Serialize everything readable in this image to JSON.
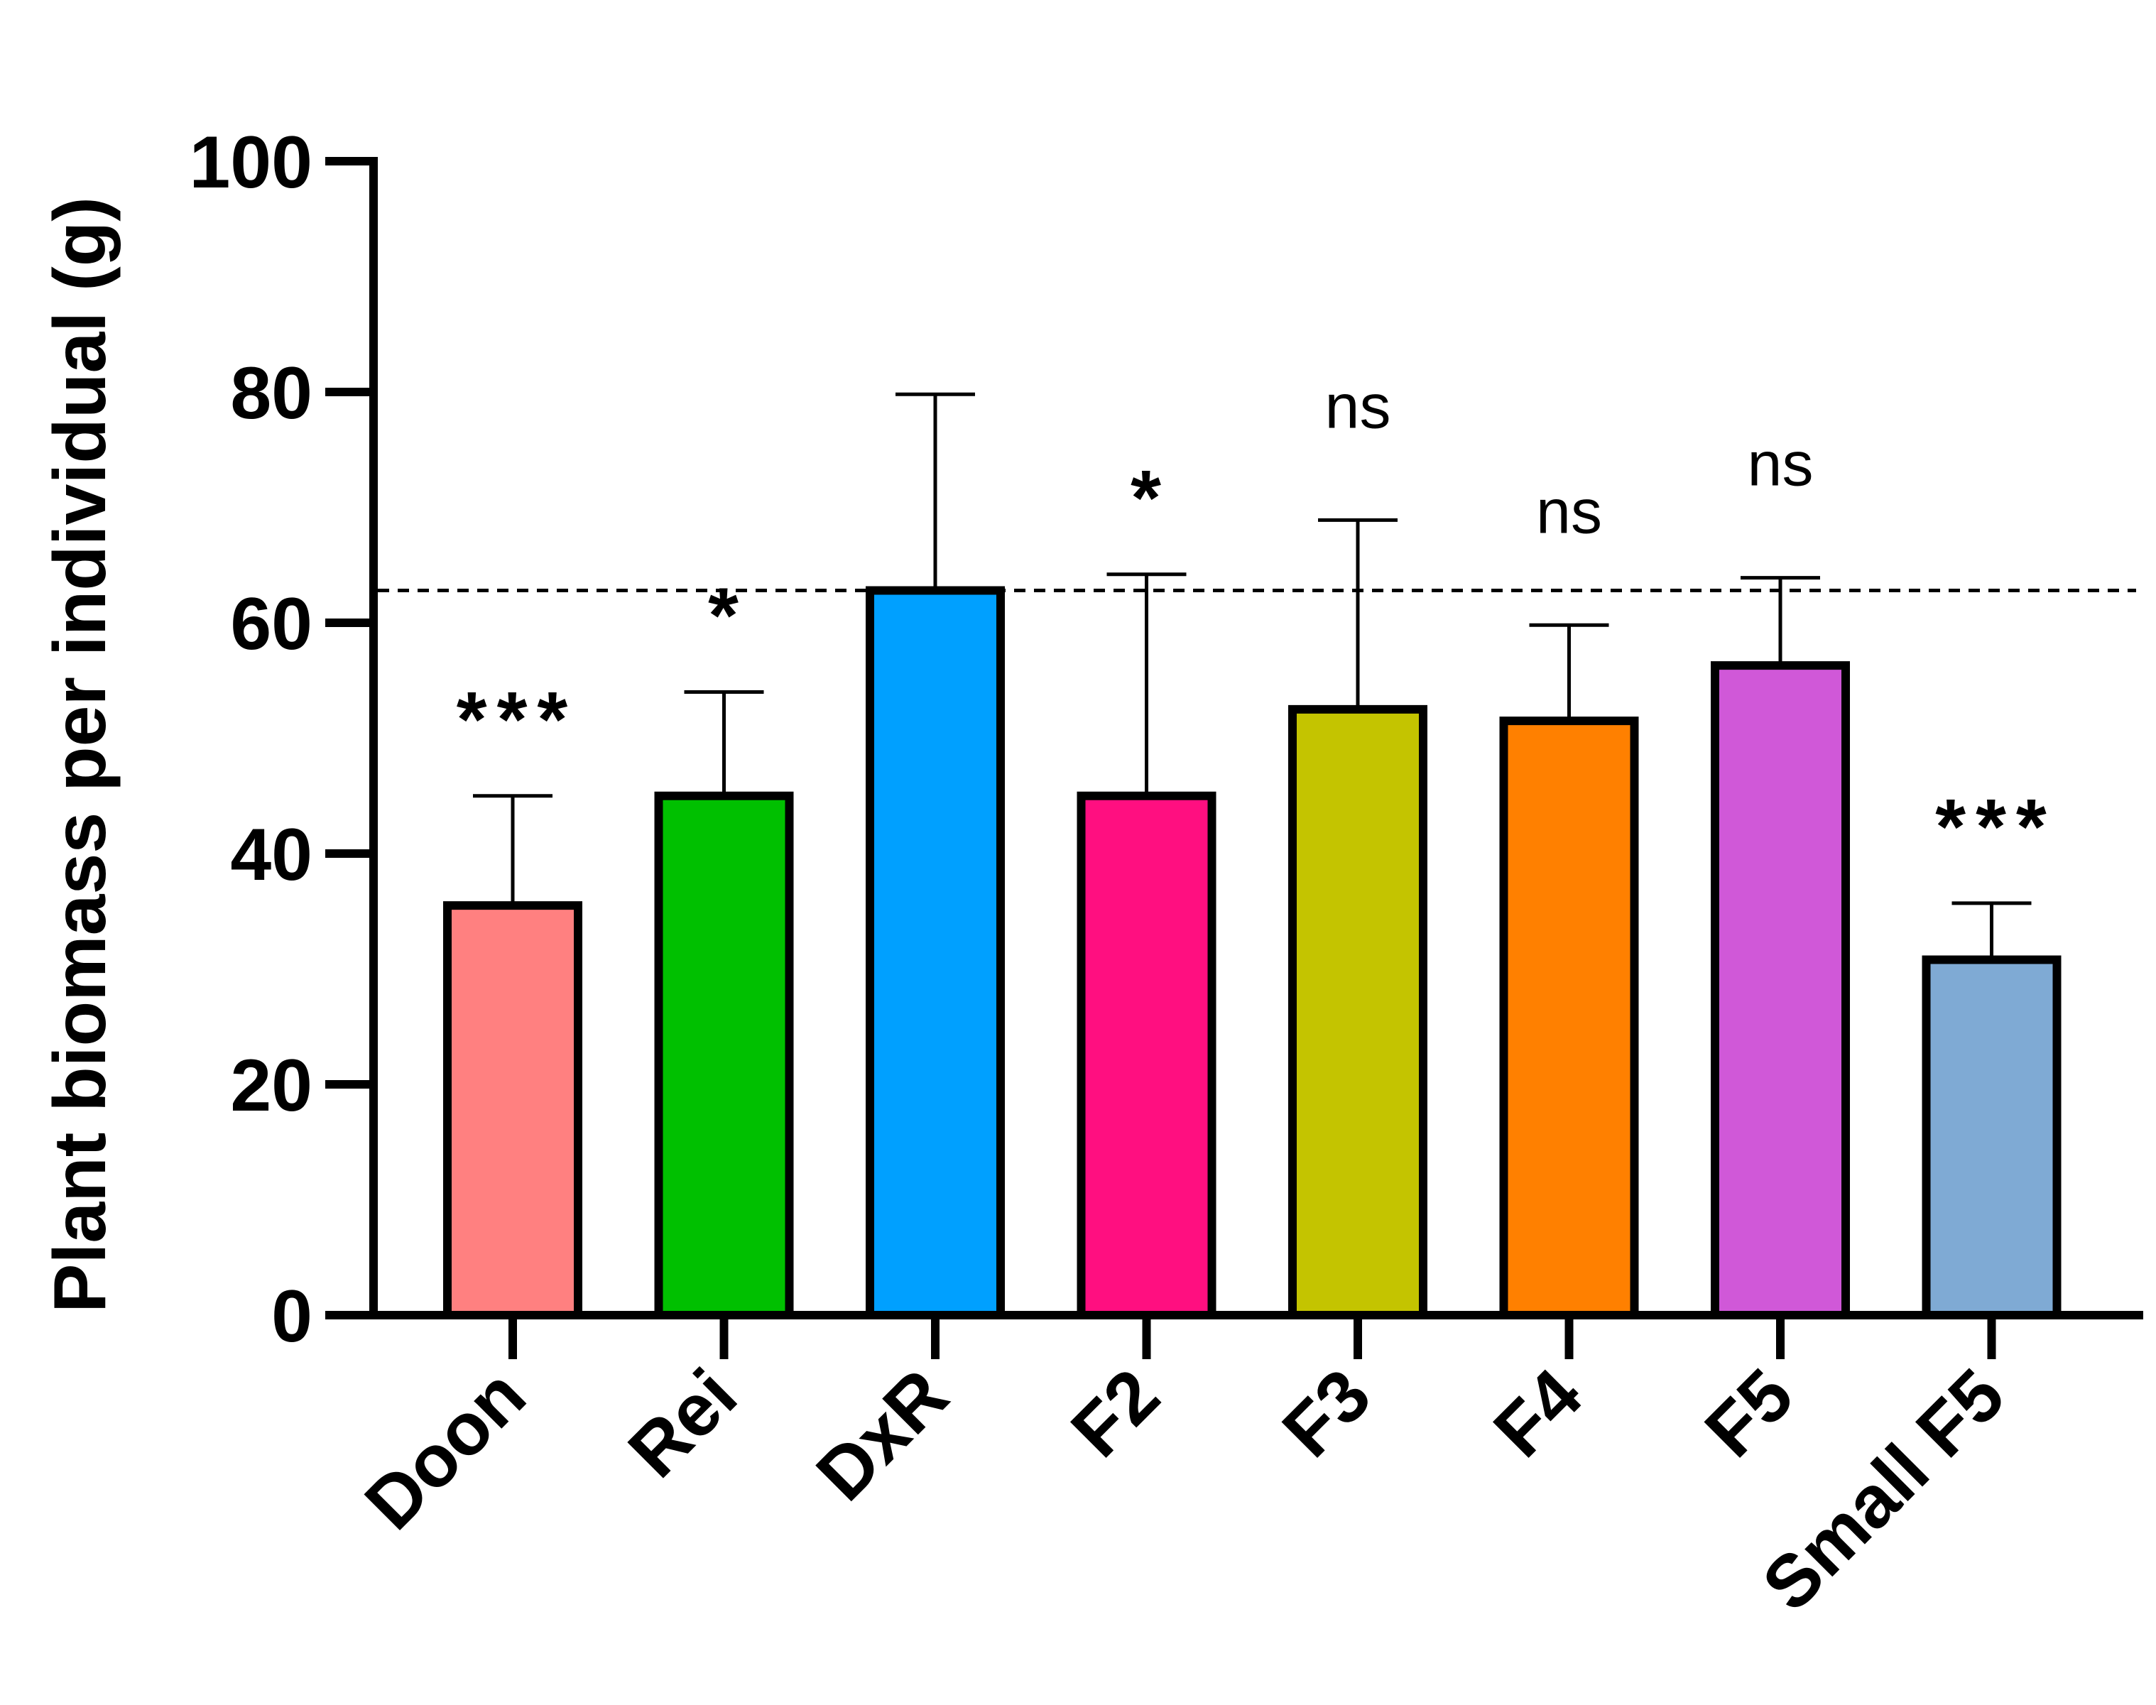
{
  "chart_data": {
    "type": "bar",
    "title": "",
    "xlabel": "",
    "ylabel": "Plant biomass per individual (g)",
    "ylim": [
      0,
      100
    ],
    "yticks": [
      0,
      20,
      40,
      60,
      80,
      100
    ],
    "categories": [
      "Doon",
      "Rei",
      "DxR",
      "F2",
      "F3",
      "F4",
      "F5",
      "Small F5"
    ],
    "values": [
      35.5,
      45,
      62.8,
      45,
      52.5,
      51.5,
      56.3,
      30.8
    ],
    "error_upper": [
      45,
      54,
      79.8,
      64.2,
      68.9,
      59.8,
      63.9,
      35.7
    ],
    "significance": [
      "***",
      "*",
      "",
      "*",
      "ns",
      "ns",
      "ns",
      "***"
    ],
    "reference_line": 62.8,
    "colors": [
      "#FF8080",
      "#00C000",
      "#00A0FF",
      "#FF0F80",
      "#C4C400",
      "#FF8000",
      "#D058D8",
      "#7FAAD4"
    ],
    "grid": false,
    "legend": "none"
  }
}
